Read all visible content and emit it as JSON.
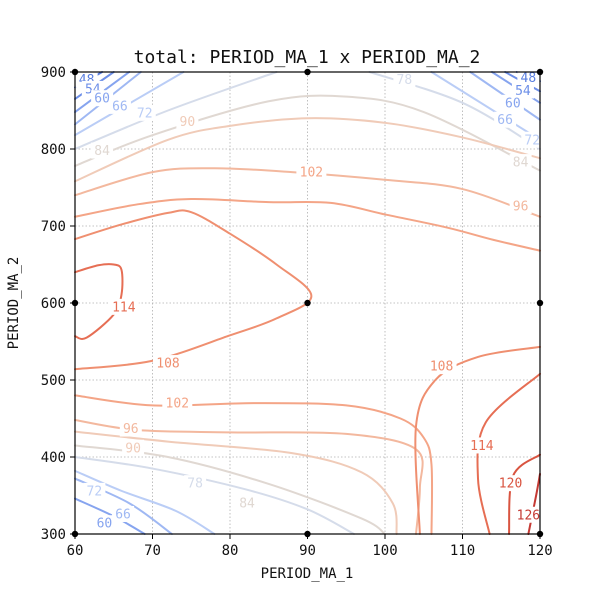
{
  "chart_data": {
    "type": "contour",
    "title": "total: PERIOD_MA_1 x PERIOD_MA_2",
    "xlabel": "PERIOD_MA_1",
    "ylabel": "PERIOD_MA_2",
    "xlim": [
      60,
      120
    ],
    "ylim": [
      300,
      900
    ],
    "xticks": [
      60,
      70,
      80,
      90,
      100,
      110,
      120
    ],
    "yticks": [
      300,
      400,
      500,
      600,
      700,
      800,
      900
    ],
    "grid": true,
    "sample_points": [
      {
        "x": 60,
        "y": 300
      },
      {
        "x": 60,
        "y": 600
      },
      {
        "x": 60,
        "y": 900
      },
      {
        "x": 90,
        "y": 300
      },
      {
        "x": 90,
        "y": 600
      },
      {
        "x": 90,
        "y": 900
      },
      {
        "x": 120,
        "y": 300
      },
      {
        "x": 120,
        "y": 600
      },
      {
        "x": 120,
        "y": 900
      }
    ],
    "levels": [
      {
        "value": 48,
        "color": "#5a7fe0",
        "label": "48",
        "label_at": [
          [
            61.5,
            890
          ],
          [
            118.5,
            893
          ]
        ],
        "paths": [
          [
            [
              60,
              880
            ],
            [
              63.5,
              900
            ]
          ],
          [
            [
              117,
              900
            ],
            [
              120,
              888
            ]
          ]
        ]
      },
      {
        "value": 54,
        "color": "#6d8fe8",
        "label": "54",
        "label_at": [
          [
            62.3,
            878
          ],
          [
            117.8,
            876
          ]
        ],
        "paths": [
          [
            [
              60,
              865
            ],
            [
              65,
              900
            ]
          ],
          [
            [
              115.5,
              900
            ],
            [
              120,
              875
            ]
          ]
        ]
      },
      {
        "value": 60,
        "color": "#86a4ef",
        "label": "60",
        "label_at": [
          [
            63.5,
            866
          ],
          [
            116.5,
            860
          ],
          [
            63.8,
            314
          ]
        ],
        "paths": [
          [
            [
              60,
              848
            ],
            [
              67,
              900
            ]
          ],
          [
            [
              113.8,
              900
            ],
            [
              120,
              860
            ]
          ],
          [
            [
              60,
              346
            ],
            [
              65,
              323
            ],
            [
              69,
              300
            ]
          ]
        ]
      },
      {
        "value": 66,
        "color": "#9fb8f3",
        "label": "66",
        "label_at": [
          [
            65.8,
            856
          ],
          [
            115.5,
            838
          ],
          [
            66.2,
            326
          ]
        ],
        "paths": [
          [
            [
              60,
              832
            ],
            [
              68.5,
              900
            ]
          ],
          [
            [
              111,
              900
            ],
            [
              120,
              838
            ]
          ],
          [
            [
              60,
              372
            ],
            [
              67,
              340
            ],
            [
              72.5,
              300
            ]
          ]
        ]
      },
      {
        "value": 72,
        "color": "#bacdf6",
        "label": "72",
        "label_at": [
          [
            69,
            847
          ],
          [
            119,
            812
          ],
          [
            62.5,
            356
          ]
        ],
        "paths": [
          [
            [
              60,
              818
            ],
            [
              74,
              900
            ]
          ],
          [
            [
              106,
              900
            ],
            [
              120,
              812
            ]
          ],
          [
            [
              60,
              382
            ],
            [
              66,
              356
            ],
            [
              73,
              330
            ],
            [
              78,
              300
            ]
          ]
        ]
      },
      {
        "value": 78,
        "color": "#d5dcea",
        "label": "78",
        "label_at": [
          [
            102.5,
            890
          ],
          [
            75.5,
            366
          ]
        ],
        "paths": [
          [
            [
              60,
              800
            ],
            [
              72,
              850
            ],
            [
              86,
              900
            ]
          ],
          [
            [
              98,
              900
            ],
            [
              110,
              860
            ],
            [
              120,
              800
            ]
          ],
          [
            [
              60,
              400
            ],
            [
              70,
              385
            ],
            [
              82,
              358
            ],
            [
              90,
              332
            ],
            [
              96,
              300
            ]
          ]
        ]
      },
      {
        "value": 84,
        "color": "#e0d8d2",
        "label": "84",
        "label_at": [
          [
            63.5,
            798
          ],
          [
            117.5,
            783
          ],
          [
            82.2,
            340
          ]
        ],
        "paths": [
          [
            [
              60,
              778
            ],
            [
              70,
              818
            ],
            [
              85,
              862
            ],
            [
              95,
              868
            ],
            [
              105,
              848
            ],
            [
              120,
              772
            ]
          ],
          [
            [
              60,
              415
            ],
            [
              72,
              400
            ],
            [
              85,
              365
            ],
            [
              97,
              320
            ],
            [
              100,
              300
            ]
          ]
        ]
      },
      {
        "value": 90,
        "color": "#f0cbb8",
        "label": "90",
        "label_at": [
          [
            74.5,
            836
          ],
          [
            67.5,
            412
          ]
        ],
        "paths": [
          [
            [
              60,
              758
            ],
            [
              72,
              812
            ],
            [
              80,
              830
            ],
            [
              90,
              840
            ],
            [
              100,
              834
            ],
            [
              110,
              815
            ],
            [
              120,
              788
            ]
          ],
          [
            [
              60,
              433
            ],
            [
              72,
              420
            ],
            [
              88,
              405
            ],
            [
              97,
              380
            ],
            [
              101,
              340
            ],
            [
              101.5,
              300
            ]
          ]
        ]
      },
      {
        "value": 96,
        "color": "#f3b89e",
        "label": "96",
        "label_at": [
          [
            67.2,
            437
          ],
          [
            117.5,
            726
          ]
        ],
        "paths": [
          [
            [
              60,
              740
            ],
            [
              70,
              770
            ],
            [
              78,
              775
            ],
            [
              88,
              770
            ],
            [
              100,
              760
            ],
            [
              110,
              748
            ],
            [
              120,
              712
            ]
          ],
          [
            [
              60,
              448
            ],
            [
              68,
              435
            ],
            [
              80,
              432
            ],
            [
              95,
              430
            ],
            [
              104,
              410
            ],
            [
              104.5,
              360
            ],
            [
              104,
              300
            ]
          ]
        ]
      },
      {
        "value": 102,
        "color": "#f4a587",
        "label": "102",
        "label_at": [
          [
            90.5,
            770
          ],
          [
            73.2,
            470
          ]
        ],
        "paths": [
          [
            [
              60,
              712
            ],
            [
              68,
              728
            ],
            [
              75,
              735
            ],
            [
              85,
              731
            ],
            [
              93,
              730
            ],
            [
              100,
              715
            ],
            [
              108,
              698
            ],
            [
              114,
              682
            ],
            [
              120,
              668
            ]
          ],
          [
            [
              60,
              480
            ],
            [
              70,
              467
            ],
            [
              83,
              470
            ],
            [
              95,
              467
            ],
            [
              102,
              450
            ],
            [
              105,
              425
            ],
            [
              106,
              390
            ],
            [
              106,
              300
            ]
          ]
        ]
      },
      {
        "value": 108,
        "color": "#ef8f70",
        "label": "108",
        "label_at": [
          [
            72,
            522
          ],
          [
            107.3,
            518
          ]
        ],
        "paths": [
          [
            [
              60,
              683
            ],
            [
              66,
              702
            ],
            [
              72,
              717
            ],
            [
              75,
              718
            ],
            [
              80,
              690
            ],
            [
              86,
              650
            ],
            [
              90.5,
              609
            ],
            [
              86,
              580
            ],
            [
              80,
              558
            ],
            [
              70,
              525
            ],
            [
              60,
              514
            ]
          ],
          [
            [
              104.5,
              300
            ],
            [
              104,
              440
            ],
            [
              106.5,
              500
            ],
            [
              112,
              530
            ],
            [
              120,
              543
            ]
          ]
        ]
      },
      {
        "value": 114,
        "color": "#e66e54",
        "label": "114",
        "label_at": [
          [
            66.3,
            595
          ],
          [
            112.5,
            415
          ]
        ],
        "paths": [
          [
            [
              60,
              640
            ],
            [
              63,
              649
            ],
            [
              65,
              650
            ],
            [
              66,
              643
            ],
            [
              66,
              611
            ],
            [
              65,
              585
            ],
            [
              61.5,
              555
            ],
            [
              60,
              557
            ]
          ],
          [
            [
              113.5,
              300
            ],
            [
              112,
              372
            ],
            [
              113,
              445
            ],
            [
              120,
              508
            ]
          ]
        ]
      },
      {
        "value": 120,
        "color": "#d95440",
        "label": "120",
        "label_at": [
          [
            116.2,
            366
          ]
        ],
        "paths": [
          [
            [
              116,
              300
            ],
            [
              116.5,
              375
            ],
            [
              120,
              403
            ]
          ]
        ]
      },
      {
        "value": 126,
        "color": "#c53a34",
        "label": "126",
        "label_at": [
          [
            118.5,
            325
          ]
        ],
        "paths": [
          [
            [
              118.5,
              300
            ],
            [
              119.5,
              350
            ],
            [
              120,
              378
            ]
          ]
        ]
      }
    ]
  }
}
